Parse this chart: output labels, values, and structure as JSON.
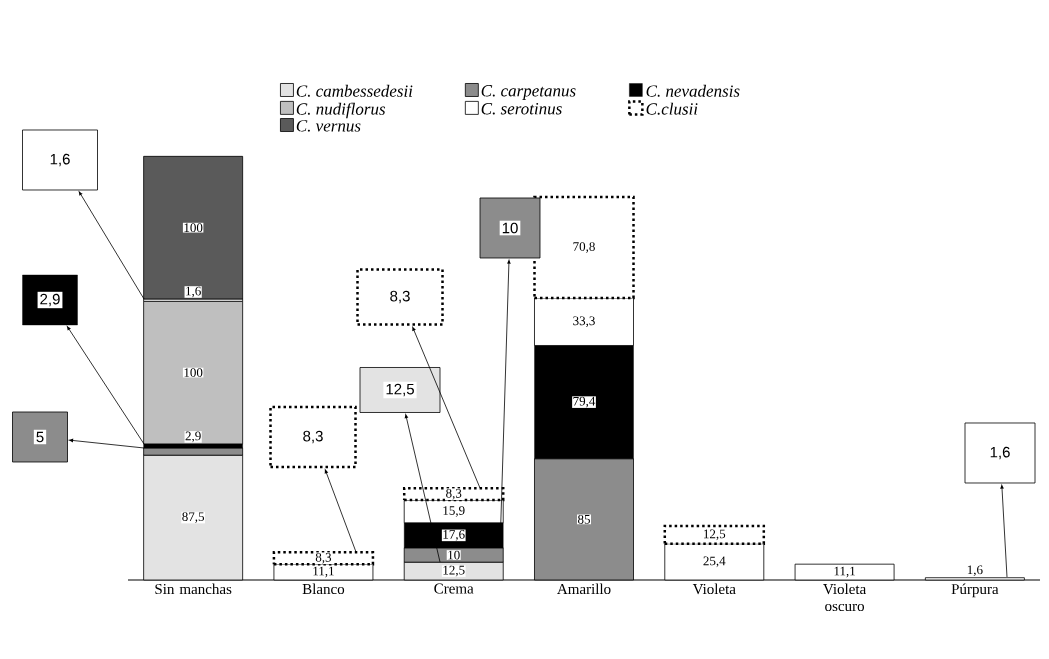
{
  "chart_data": {
    "type": "bar",
    "stacked": true,
    "legend": "top",
    "categories": [
      "Sin manchas",
      "Blanco",
      "Crema",
      "Amarillo",
      "Violeta",
      "Violeta oscuro",
      "Púrpura"
    ],
    "series": [
      {
        "name": "C. cambessedesii",
        "color": "#e3e3e3",
        "values": [
          87.5,
          null,
          12.5,
          null,
          null,
          null,
          null
        ],
        "value_labels": [
          "87,5",
          null,
          "12,5",
          null,
          null,
          null,
          null
        ]
      },
      {
        "name": "C. carpetanus",
        "color": "#8c8c8c",
        "values": [
          5,
          null,
          10,
          85,
          null,
          null,
          null
        ],
        "value_labels": [
          null,
          null,
          "10",
          "85",
          null,
          null,
          null
        ]
      },
      {
        "name": "C. nevadensis",
        "color": "#000000",
        "values": [
          2.9,
          null,
          17.6,
          79.4,
          null,
          null,
          null
        ],
        "value_labels": [
          "2,9",
          null,
          "17,6",
          "79,4",
          null,
          null,
          null
        ]
      },
      {
        "name": "C. nudiflorus",
        "color": "#bfbfbf",
        "values": [
          100,
          null,
          null,
          null,
          null,
          null,
          null
        ],
        "value_labels": [
          "100",
          null,
          null,
          null,
          null,
          null,
          null
        ]
      },
      {
        "name": "C. serotinus",
        "color": "#ffffff",
        "values": [
          1.6,
          11.1,
          15.9,
          33.3,
          25.4,
          11.1,
          1.6
        ],
        "value_labels": [
          "1,6",
          "11,1",
          "15,9",
          "33,3",
          "25,4",
          "11,1",
          "1,6"
        ]
      },
      {
        "name": "C.clusii",
        "color": "#ffffff",
        "values": [
          null,
          8.3,
          8.3,
          70.8,
          12.5,
          null,
          null
        ],
        "value_labels": [
          null,
          "8,3",
          "8,3",
          "70,8",
          "12,5",
          null,
          null
        ]
      },
      {
        "name": "C. vernus",
        "color": "#5a5a5a",
        "values": [
          100,
          null,
          null,
          null,
          null,
          null,
          null
        ],
        "value_labels": [
          "100",
          null,
          null,
          null,
          null,
          null,
          null
        ]
      }
    ],
    "annotations": [
      "1,6",
      "2,9",
      "5",
      "8,3",
      "12,5",
      "8,3",
      "10",
      "1,6"
    ]
  }
}
